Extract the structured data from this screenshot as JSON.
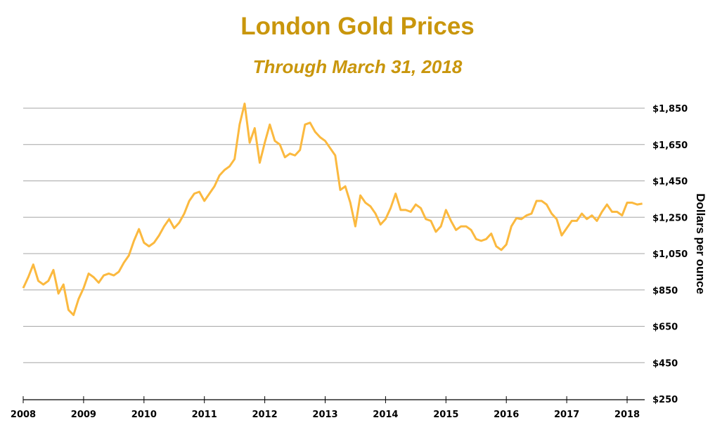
{
  "chart_data": {
    "type": "line",
    "title": "London Gold Prices",
    "subtitle": "Through March 31, 2018",
    "xlabel": "",
    "ylabel": "Dollars per ounce",
    "xlim": [
      2008,
      2018.25
    ],
    "ylim": [
      250,
      1850
    ],
    "grid": true,
    "y_axis_side": "right",
    "x_ticks": [
      "2008",
      "2009",
      "2010",
      "2011",
      "2012",
      "2013",
      "2014",
      "2015",
      "2016",
      "2017",
      "2018"
    ],
    "y_ticks": [
      "$250",
      "$450",
      "$650",
      "$850",
      "$1,050",
      "$1,250",
      "$1,450",
      "$1,650",
      "$1,850"
    ],
    "line_color": "#fbb93f",
    "title_color": "#c9960c",
    "series": [
      {
        "dates": [
          "2008-01",
          "2008-02",
          "2008-03",
          "2008-04",
          "2008-05",
          "2008-06",
          "2008-07",
          "2008-08",
          "2008-09",
          "2008-10",
          "2008-11",
          "2008-12",
          "2009-01",
          "2009-02",
          "2009-03",
          "2009-04",
          "2009-05",
          "2009-06",
          "2009-07",
          "2009-08",
          "2009-09",
          "2009-10",
          "2009-11",
          "2009-12",
          "2010-01",
          "2010-02",
          "2010-03",
          "2010-04",
          "2010-05",
          "2010-06",
          "2010-07",
          "2010-08",
          "2010-09",
          "2010-10",
          "2010-11",
          "2010-12",
          "2011-01",
          "2011-02",
          "2011-03",
          "2011-04",
          "2011-05",
          "2011-06",
          "2011-07",
          "2011-08",
          "2011-09",
          "2011-10",
          "2011-11",
          "2011-12",
          "2012-01",
          "2012-02",
          "2012-03",
          "2012-04",
          "2012-05",
          "2012-06",
          "2012-07",
          "2012-08",
          "2012-09",
          "2012-10",
          "2012-11",
          "2012-12",
          "2013-01",
          "2013-02",
          "2013-03",
          "2013-04",
          "2013-05",
          "2013-06",
          "2013-07",
          "2013-08",
          "2013-09",
          "2013-10",
          "2013-11",
          "2013-12",
          "2014-01",
          "2014-02",
          "2014-03",
          "2014-04",
          "2014-05",
          "2014-06",
          "2014-07",
          "2014-08",
          "2014-09",
          "2014-10",
          "2014-11",
          "2014-12",
          "2015-01",
          "2015-02",
          "2015-03",
          "2015-04",
          "2015-05",
          "2015-06",
          "2015-07",
          "2015-08",
          "2015-09",
          "2015-10",
          "2015-11",
          "2015-12",
          "2016-01",
          "2016-02",
          "2016-03",
          "2016-04",
          "2016-05",
          "2016-06",
          "2016-07",
          "2016-08",
          "2016-09",
          "2016-10",
          "2016-11",
          "2016-12",
          "2017-01",
          "2017-02",
          "2017-03",
          "2017-04",
          "2017-05",
          "2017-06",
          "2017-07",
          "2017-08",
          "2017-09",
          "2017-10",
          "2017-11",
          "2017-12",
          "2018-01",
          "2018-02",
          "2018-03",
          "2018-03-31"
        ],
        "values": [
          860,
          920,
          990,
          900,
          880,
          900,
          960,
          830,
          880,
          740,
          712,
          800,
          860,
          940,
          920,
          890,
          930,
          940,
          930,
          950,
          1000,
          1040,
          1120,
          1185,
          1110,
          1090,
          1110,
          1150,
          1200,
          1240,
          1190,
          1220,
          1270,
          1340,
          1380,
          1390,
          1340,
          1380,
          1420,
          1480,
          1510,
          1530,
          1570,
          1760,
          1875,
          1660,
          1740,
          1550,
          1660,
          1760,
          1670,
          1650,
          1580,
          1600,
          1590,
          1620,
          1760,
          1770,
          1720,
          1690,
          1670,
          1630,
          1590,
          1400,
          1420,
          1330,
          1200,
          1370,
          1330,
          1310,
          1270,
          1210,
          1240,
          1300,
          1380,
          1290,
          1290,
          1280,
          1320,
          1300,
          1240,
          1230,
          1170,
          1200,
          1290,
          1230,
          1180,
          1200,
          1200,
          1180,
          1130,
          1120,
          1130,
          1160,
          1090,
          1070,
          1100,
          1200,
          1245,
          1240,
          1260,
          1270,
          1340,
          1340,
          1320,
          1270,
          1240,
          1150,
          1190,
          1230,
          1230,
          1270,
          1240,
          1260,
          1230,
          1280,
          1320,
          1280,
          1280,
          1260,
          1330,
          1330,
          1320,
          1325
        ]
      }
    ]
  }
}
